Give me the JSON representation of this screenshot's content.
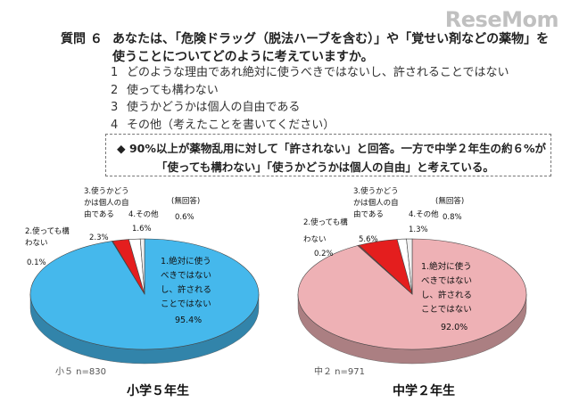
{
  "brand": {
    "logo_text": "ReseMom"
  },
  "question": {
    "number": "質問 ６",
    "text_line1": "あなたは、「危険ドラッグ（脱法ハーブを含む）」や「覚せい剤などの薬物」を",
    "text_line2": "使うことについてどのように考えていますか。"
  },
  "options": [
    {
      "num": "1",
      "text": "どのような理由であれ絶対に使うべきではないし、許されることではない"
    },
    {
      "num": "2",
      "text": "使っても構わない"
    },
    {
      "num": "3",
      "text": "使うかどうかは個人の自由である"
    },
    {
      "num": "4",
      "text": "その他（考えたことを書いてください）"
    }
  ],
  "summary": {
    "line1": "◆ 90%以上が薬物乱用に対して「許されない」と回答。一方で中学２年生の約６%が",
    "line2": "「使っても構わない」「使うかどうかは個人の自由」と考えている。"
  },
  "colors": {
    "opt1_elem": "#45b8ec",
    "opt1_jhs": "#eeb1b5",
    "opt2": "#b94046",
    "opt3": "#e41e1e",
    "opt4": "#ffffff",
    "noans": "#f2f2f2"
  },
  "chart_data": [
    {
      "type": "pie",
      "caption": "小学５年生",
      "n_label": "小５ n=830",
      "slices": [
        {
          "label_lines": [
            "1.絶対に使う",
            "べきではない",
            "し、許される",
            "ことではない"
          ],
          "value": 95.4,
          "value_label": "95.4%"
        },
        {
          "label_lines": [
            "2.使っても構",
            "わない"
          ],
          "value": 0.1,
          "value_label": "0.1%"
        },
        {
          "label_lines": [
            "3.使うかどう",
            "かは個人の自",
            "由である"
          ],
          "value": 2.3,
          "value_label": "2.3%"
        },
        {
          "label_lines": [
            "4.その他"
          ],
          "value": 1.6,
          "value_label": "1.6%"
        },
        {
          "label_lines": [
            "(無回答)"
          ],
          "value": 0.6,
          "value_label": "0.6%"
        }
      ]
    },
    {
      "type": "pie",
      "caption": "中学２年生",
      "n_label": "中２ n=971",
      "slices": [
        {
          "label_lines": [
            "1.絶対に使う",
            "べきではない",
            "し、許される",
            "ことではない"
          ],
          "value": 92.0,
          "value_label": "92.0%"
        },
        {
          "label_lines": [
            "2.使っても構",
            "わない"
          ],
          "value": 0.2,
          "value_label": "0.2%"
        },
        {
          "label_lines": [
            "3.使うかどう",
            "かは個人の自",
            "由である"
          ],
          "value": 5.6,
          "value_label": "5.6%"
        },
        {
          "label_lines": [
            "4.その他"
          ],
          "value": 1.3,
          "value_label": "1.3%"
        },
        {
          "label_lines": [
            "(無回答)"
          ],
          "value": 0.8,
          "value_label": "0.8%"
        }
      ]
    }
  ]
}
